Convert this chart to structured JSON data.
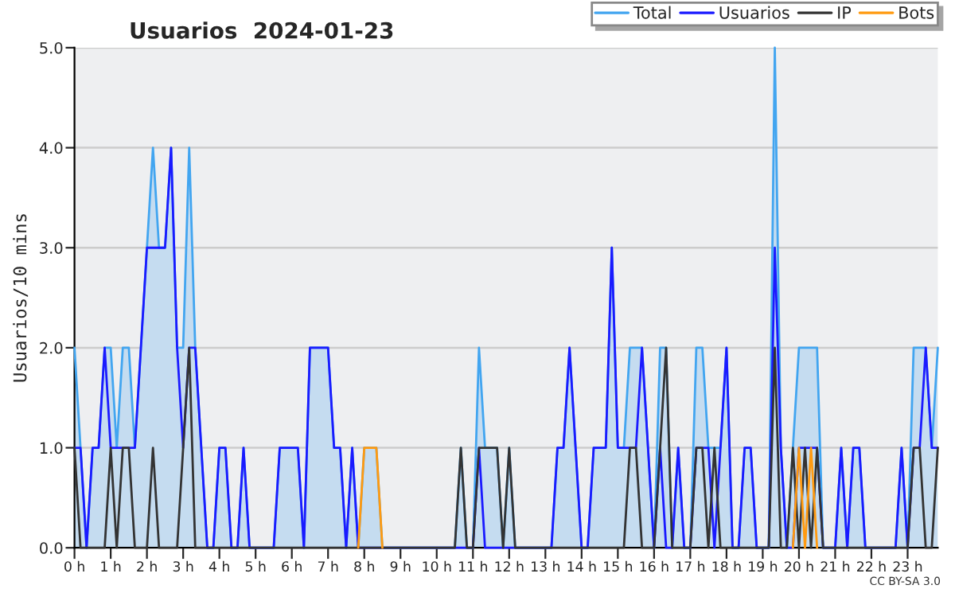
{
  "chart_data": {
    "type": "line",
    "title": "Usuarios  2024-01-23",
    "ylabel": "Usuarios/10 mins",
    "categories": [
      "0 h",
      null,
      null,
      null,
      null,
      null,
      "1 h",
      null,
      null,
      null,
      null,
      null,
      "2 h",
      null,
      null,
      null,
      null,
      null,
      "3 h",
      null,
      null,
      null,
      null,
      null,
      "4 h",
      null,
      null,
      null,
      null,
      null,
      "5 h",
      null,
      null,
      null,
      null,
      null,
      "6 h",
      null,
      null,
      null,
      null,
      null,
      "7 h",
      null,
      null,
      null,
      null,
      null,
      "8 h",
      null,
      null,
      null,
      null,
      null,
      "9 h",
      null,
      null,
      null,
      null,
      null,
      "10 h",
      null,
      null,
      null,
      null,
      null,
      "11 h",
      null,
      null,
      null,
      null,
      null,
      "12 h",
      null,
      null,
      null,
      null,
      null,
      "13 h",
      null,
      null,
      null,
      null,
      null,
      "14 h",
      null,
      null,
      null,
      null,
      null,
      "15 h",
      null,
      null,
      null,
      null,
      null,
      "16 h",
      null,
      null,
      null,
      null,
      null,
      "17 h",
      null,
      null,
      null,
      null,
      null,
      "18 h",
      null,
      null,
      null,
      null,
      null,
      "19 h",
      null,
      null,
      null,
      null,
      null,
      "20 h",
      null,
      null,
      null,
      null,
      null,
      "21 h",
      null,
      null,
      null,
      null,
      null,
      "22 h",
      null,
      null,
      null,
      null,
      null,
      "23 h",
      null,
      null,
      null,
      null,
      null
    ],
    "series": [
      {
        "name": "Total",
        "type": "area",
        "color": "#42a5f0",
        "values": [
          2,
          1,
          0,
          1,
          1,
          2,
          2,
          1,
          2,
          2,
          1,
          2,
          3,
          4,
          3,
          3,
          4,
          2,
          2,
          4,
          2,
          1,
          0,
          0,
          1,
          1,
          0,
          0,
          1,
          0,
          0,
          0,
          0,
          0,
          1,
          1,
          1,
          1,
          0,
          2,
          2,
          2,
          2,
          1,
          1,
          0,
          1,
          0,
          1,
          1,
          1,
          0,
          0,
          0,
          0,
          0,
          0,
          0,
          0,
          0,
          0,
          0,
          0,
          0,
          1,
          0,
          0,
          2,
          1,
          1,
          1,
          0,
          1,
          0,
          0,
          0,
          0,
          0,
          0,
          0,
          1,
          1,
          2,
          1,
          0,
          0,
          1,
          1,
          1,
          3,
          1,
          1,
          2,
          2,
          2,
          1,
          0,
          2,
          2,
          0,
          1,
          0,
          0,
          2,
          2,
          1,
          1,
          1,
          2,
          0,
          0,
          1,
          1,
          0,
          0,
          0,
          5,
          1,
          0,
          1,
          2,
          2,
          2,
          2,
          0,
          0,
          0,
          1,
          0,
          1,
          1,
          0,
          0,
          0,
          0,
          0,
          0,
          1,
          0,
          2,
          2,
          2,
          1,
          2
        ]
      },
      {
        "name": "Usuarios",
        "color": "#1a1aff",
        "values": [
          1,
          1,
          0,
          1,
          1,
          2,
          1,
          1,
          1,
          1,
          1,
          2,
          3,
          3,
          3,
          3,
          4,
          2,
          1,
          2,
          2,
          1,
          0,
          0,
          1,
          1,
          0,
          0,
          1,
          0,
          0,
          0,
          0,
          0,
          1,
          1,
          1,
          1,
          0,
          2,
          2,
          2,
          2,
          1,
          1,
          0,
          1,
          0,
          0,
          0,
          0,
          0,
          0,
          0,
          0,
          0,
          0,
          0,
          0,
          0,
          0,
          0,
          0,
          0,
          0,
          0,
          0,
          1,
          0,
          0,
          0,
          0,
          0,
          0,
          0,
          0,
          0,
          0,
          0,
          0,
          1,
          1,
          2,
          1,
          0,
          0,
          1,
          1,
          1,
          3,
          1,
          1,
          1,
          1,
          2,
          1,
          0,
          1,
          0,
          0,
          1,
          0,
          0,
          1,
          1,
          1,
          0,
          1,
          2,
          0,
          0,
          1,
          1,
          0,
          0,
          0,
          3,
          1,
          0,
          0,
          1,
          1,
          1,
          1,
          0,
          0,
          0,
          1,
          0,
          1,
          1,
          0,
          0,
          0,
          0,
          0,
          0,
          1,
          0,
          1,
          1,
          2,
          1,
          1
        ]
      },
      {
        "name": "IP",
        "color": "#333333",
        "values": [
          1,
          0,
          0,
          0,
          0,
          0,
          1,
          0,
          1,
          1,
          0,
          0,
          0,
          1,
          0,
          0,
          0,
          0,
          1,
          2,
          0,
          0,
          0,
          0,
          0,
          0,
          0,
          0,
          0,
          0,
          0,
          0,
          0,
          0,
          0,
          0,
          0,
          0,
          0,
          0,
          0,
          0,
          0,
          0,
          0,
          0,
          0,
          0,
          0,
          0,
          0,
          0,
          0,
          0,
          0,
          0,
          0,
          0,
          0,
          0,
          0,
          0,
          0,
          0,
          1,
          0,
          0,
          1,
          1,
          1,
          1,
          0,
          1,
          0,
          0,
          0,
          0,
          0,
          0,
          0,
          0,
          0,
          0,
          0,
          0,
          0,
          0,
          0,
          0,
          0,
          0,
          0,
          1,
          1,
          0,
          0,
          0,
          1,
          2,
          0,
          0,
          0,
          0,
          1,
          1,
          0,
          1,
          0,
          0,
          0,
          0,
          0,
          0,
          0,
          0,
          0,
          2,
          0,
          0,
          1,
          0,
          1,
          0,
          1,
          0,
          0,
          0,
          0,
          0,
          0,
          0,
          0,
          0,
          0,
          0,
          0,
          0,
          0,
          0,
          1,
          1,
          0,
          0,
          1
        ]
      },
      {
        "name": "Bots",
        "color": "#ff9a10",
        "values": [
          null,
          null,
          null,
          null,
          null,
          null,
          null,
          null,
          null,
          null,
          null,
          null,
          null,
          null,
          null,
          null,
          null,
          null,
          null,
          null,
          null,
          null,
          null,
          null,
          null,
          null,
          null,
          null,
          null,
          null,
          null,
          null,
          null,
          null,
          null,
          null,
          null,
          null,
          null,
          null,
          null,
          null,
          null,
          null,
          null,
          null,
          null,
          0,
          1,
          1,
          1,
          0,
          null,
          null,
          null,
          null,
          null,
          null,
          null,
          null,
          null,
          null,
          null,
          null,
          null,
          null,
          null,
          null,
          null,
          null,
          null,
          null,
          null,
          null,
          null,
          null,
          null,
          null,
          null,
          null,
          null,
          null,
          null,
          null,
          null,
          null,
          null,
          null,
          null,
          null,
          null,
          null,
          null,
          null,
          null,
          null,
          null,
          null,
          null,
          null,
          null,
          null,
          null,
          null,
          null,
          null,
          null,
          null,
          null,
          null,
          null,
          null,
          null,
          null,
          null,
          null,
          null,
          null,
          null,
          0,
          1,
          0,
          1,
          0,
          null,
          null,
          null,
          null,
          null,
          null,
          null,
          null,
          null,
          null,
          null,
          null,
          null,
          null,
          null,
          null,
          null,
          null,
          null,
          null
        ]
      }
    ],
    "ylim": [
      0,
      5
    ],
    "yticks": [
      {
        "value": 0,
        "label": "0.0"
      },
      {
        "value": 1,
        "label": "1.0"
      },
      {
        "value": 2,
        "label": "2.0"
      },
      {
        "value": 3,
        "label": "3.0"
      },
      {
        "value": 4,
        "label": "4.0"
      },
      {
        "value": 5,
        "label": "5.0"
      }
    ],
    "grid": "y",
    "legend": "top right",
    "annotations": [
      "CC BY-SA 3.0"
    ]
  }
}
